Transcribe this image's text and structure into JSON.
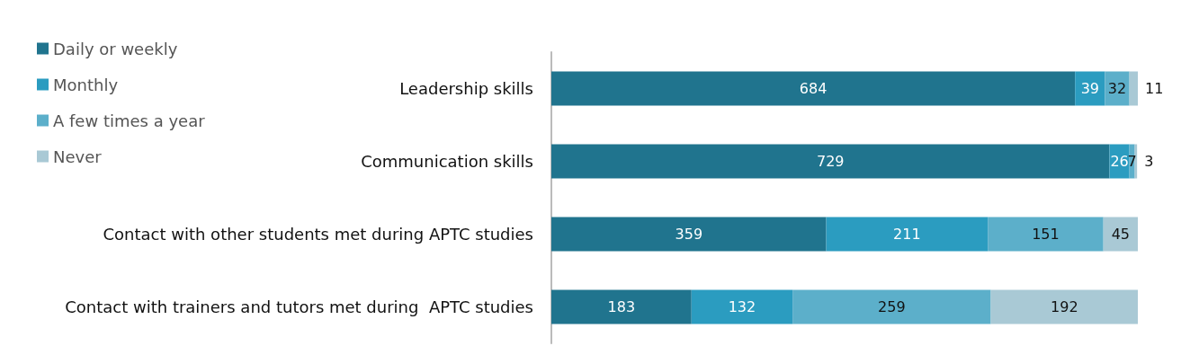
{
  "chart_data": {
    "type": "bar",
    "orientation": "horizontal",
    "stacked": true,
    "data_labels": true,
    "legend": "top left",
    "categories": [
      "Leadership skills",
      "Communication skills",
      "Contact with other students met during APTC studies",
      "Contact with trainers and tutors met during  APTC studies"
    ],
    "series": [
      {
        "name": "Daily or weekly",
        "color": "#20748e",
        "values": [
          684,
          729,
          359,
          183
        ]
      },
      {
        "name": "Monthly",
        "color": "#2b9cc0",
        "values": [
          39,
          26,
          211,
          132
        ]
      },
      {
        "name": "A few times a year",
        "color": "#5cafca",
        "values": [
          32,
          7,
          151,
          259
        ]
      },
      {
        "name": "Never",
        "color": "#a9c9d5",
        "values": [
          11,
          3,
          45,
          192
        ]
      }
    ]
  }
}
